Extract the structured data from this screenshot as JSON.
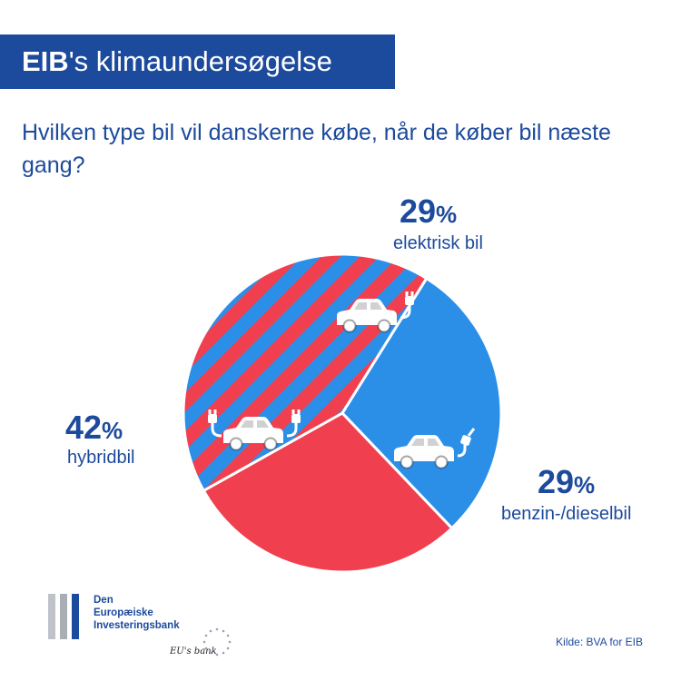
{
  "header": {
    "title_brand": "EIB",
    "title_rest": "'s klimaundersøgelse"
  },
  "question": "Hvilken type bil vil danskerne købe, når de køber bil næste gang?",
  "chart_data": {
    "type": "pie",
    "categories": [
      "elektrisk bil",
      "benzin-/dieselbil",
      "hybridbil"
    ],
    "values": [
      29,
      29,
      42
    ],
    "value_suffix": "%",
    "slices": [
      {
        "label": "elektrisk bil",
        "value": 29,
        "color": "#2b8fe8",
        "pattern": "solid",
        "icon": "electric-car-icon"
      },
      {
        "label": "benzin-/dieselbil",
        "value": 29,
        "color": "#f0404f",
        "pattern": "solid",
        "icon": "fuel-car-icon"
      },
      {
        "label": "hybridbil",
        "value": 42,
        "color": "#2b8fe8",
        "stripe_color": "#f0404f",
        "pattern": "diagonal-stripes",
        "icon": "hybrid-car-icon"
      }
    ]
  },
  "labels": {
    "electric": {
      "pct": "29",
      "sign": "%",
      "text": "elektrisk bil"
    },
    "fuel": {
      "pct": "29",
      "sign": "%",
      "text": "benzin-/dieselbil"
    },
    "hybrid": {
      "pct": "42",
      "sign": "%",
      "text": "hybridbil"
    }
  },
  "logo": {
    "line1": "Den",
    "line2": "Europæiske",
    "line3": "Investeringsbank",
    "tagline": "EU's bank"
  },
  "source": "Kilde: BVA for EIB",
  "colors": {
    "brand_blue": "#1c4a9c",
    "electric_blue": "#2b8fe8",
    "fuel_red": "#f0404f"
  }
}
